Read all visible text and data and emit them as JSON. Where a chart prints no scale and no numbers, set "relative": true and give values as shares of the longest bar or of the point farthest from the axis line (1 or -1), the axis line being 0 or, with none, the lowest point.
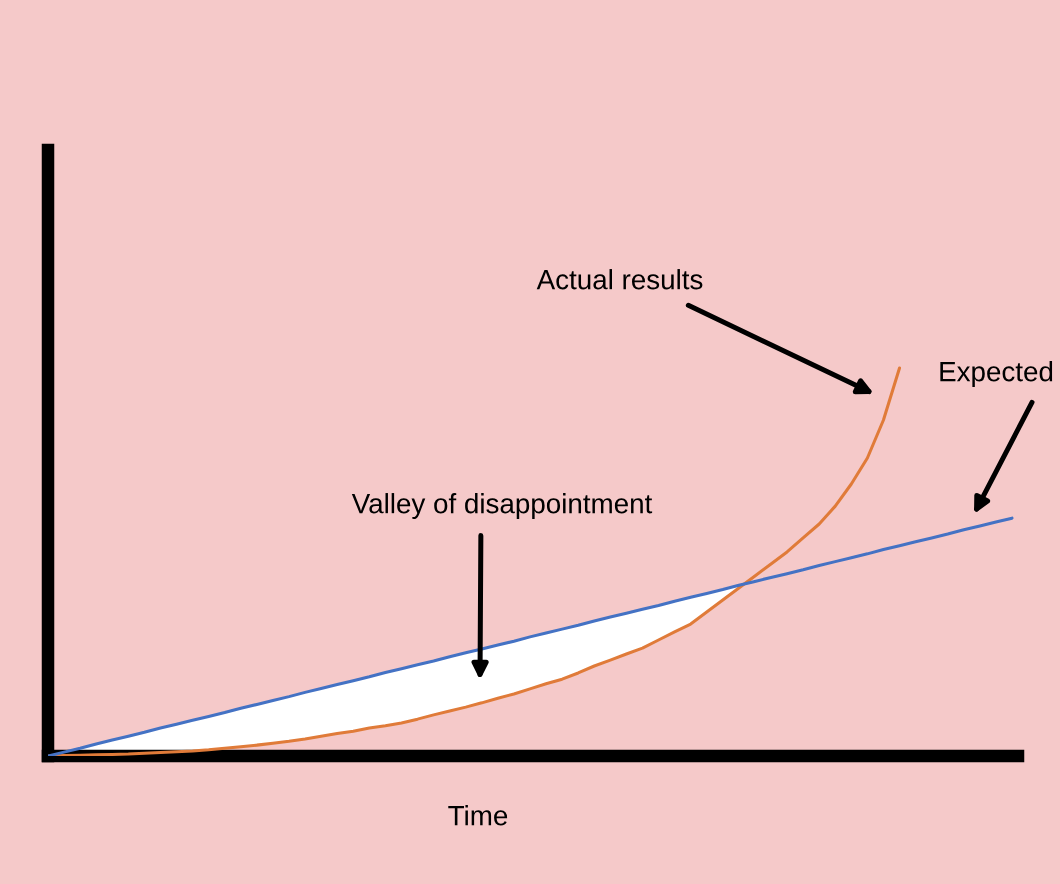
{
  "chart_data": {
    "type": "line",
    "relative": true,
    "xlabel": "Time",
    "annotations": [
      "Valley of disappointment"
    ],
    "categories": [
      null,
      null,
      null,
      null,
      null,
      null,
      null,
      null,
      null,
      null,
      null,
      null,
      null,
      null,
      null,
      null,
      null,
      null,
      null,
      null,
      null,
      null,
      null,
      null,
      null,
      null,
      null,
      null,
      null,
      null,
      null,
      null,
      null,
      null,
      null,
      null,
      null,
      null,
      null,
      null,
      null,
      null,
      null,
      null,
      null,
      null,
      null,
      null,
      null,
      null,
      null,
      null,
      null,
      null,
      null,
      null,
      null,
      null,
      null,
      null,
      null
    ],
    "series": [
      {
        "name": "Actual results",
        "color": "#e07b39",
        "values": [
          0,
          0.001,
          0.002,
          0.003,
          0.004,
          0.005,
          0.007,
          0.009,
          0.011,
          0.013,
          0.016,
          0.02,
          0.024,
          0.028,
          0.033,
          0.038,
          0.044,
          0.051,
          0.058,
          0.064,
          0.072,
          0.078,
          0.085,
          0.095,
          0.106,
          0.116,
          0.126,
          0.137,
          0.149,
          0.16,
          0.173,
          0.186,
          0.198,
          0.214,
          0.232,
          0.247,
          0.263,
          0.278,
          0.299,
          0.32,
          0.34,
          0.371,
          0.402,
          0.433,
          0.464,
          0.495,
          0.526,
          0.562,
          0.598,
          0.644,
          0.701,
          0.768,
          0.866,
          1,
          null,
          null,
          null,
          null,
          null,
          null,
          null
        ]
      },
      {
        "name": "Expected",
        "color": "#4472c4",
        "values": [
          0,
          0.01,
          0.02,
          0.031,
          0.041,
          0.051,
          0.061,
          0.072,
          0.082,
          0.092,
          0.102,
          0.112,
          0.123,
          0.133,
          0.143,
          0.153,
          0.164,
          0.174,
          0.184,
          0.194,
          0.204,
          0.215,
          0.225,
          0.235,
          0.245,
          0.256,
          0.266,
          0.276,
          0.286,
          0.296,
          0.307,
          0.317,
          0.327,
          0.337,
          0.348,
          0.358,
          0.368,
          0.378,
          0.388,
          0.399,
          0.409,
          0.419,
          0.429,
          0.44,
          0.45,
          0.46,
          0.47,
          0.48,
          0.491,
          0.501,
          0.511,
          0.521,
          0.532,
          0.542,
          0.552,
          0.562,
          0.572,
          0.583,
          0.593,
          0.603,
          0.613
        ],
        "lower": [
          0,
          0.001,
          0.002,
          0.003,
          0.004,
          0.005,
          0.007,
          0.009,
          0.011,
          0.013,
          0.016,
          0.02,
          0.024,
          0.028,
          0.033,
          0.038,
          0.044,
          0.051,
          0.058,
          0.064,
          0.072,
          0.078,
          0.085,
          0.095,
          0.106,
          0.116,
          0.126,
          0.137,
          0.149,
          0.16,
          0.173,
          0.186,
          0.198,
          0.214,
          0.232,
          0.247,
          0.263,
          0.278,
          0.299,
          0.32,
          0.34,
          0.371,
          0.402,
          0.433,
          null,
          null,
          null,
          null,
          null,
          null,
          null,
          null,
          null,
          null,
          null,
          null,
          null,
          null,
          null,
          null,
          null
        ],
        "upper": [
          0,
          0.01,
          0.02,
          0.031,
          0.041,
          0.051,
          0.061,
          0.072,
          0.082,
          0.092,
          0.102,
          0.112,
          0.123,
          0.133,
          0.143,
          0.153,
          0.164,
          0.174,
          0.184,
          0.194,
          0.204,
          0.215,
          0.225,
          0.235,
          0.245,
          0.256,
          0.266,
          0.276,
          0.286,
          0.296,
          0.307,
          0.317,
          0.327,
          0.337,
          0.348,
          0.358,
          0.368,
          0.378,
          0.388,
          0.399,
          0.409,
          0.419,
          0.429,
          0.44,
          null,
          null,
          null,
          null,
          null,
          null,
          null,
          null,
          null,
          null,
          null,
          null,
          null,
          null,
          null,
          null,
          null
        ]
      }
    ]
  }
}
